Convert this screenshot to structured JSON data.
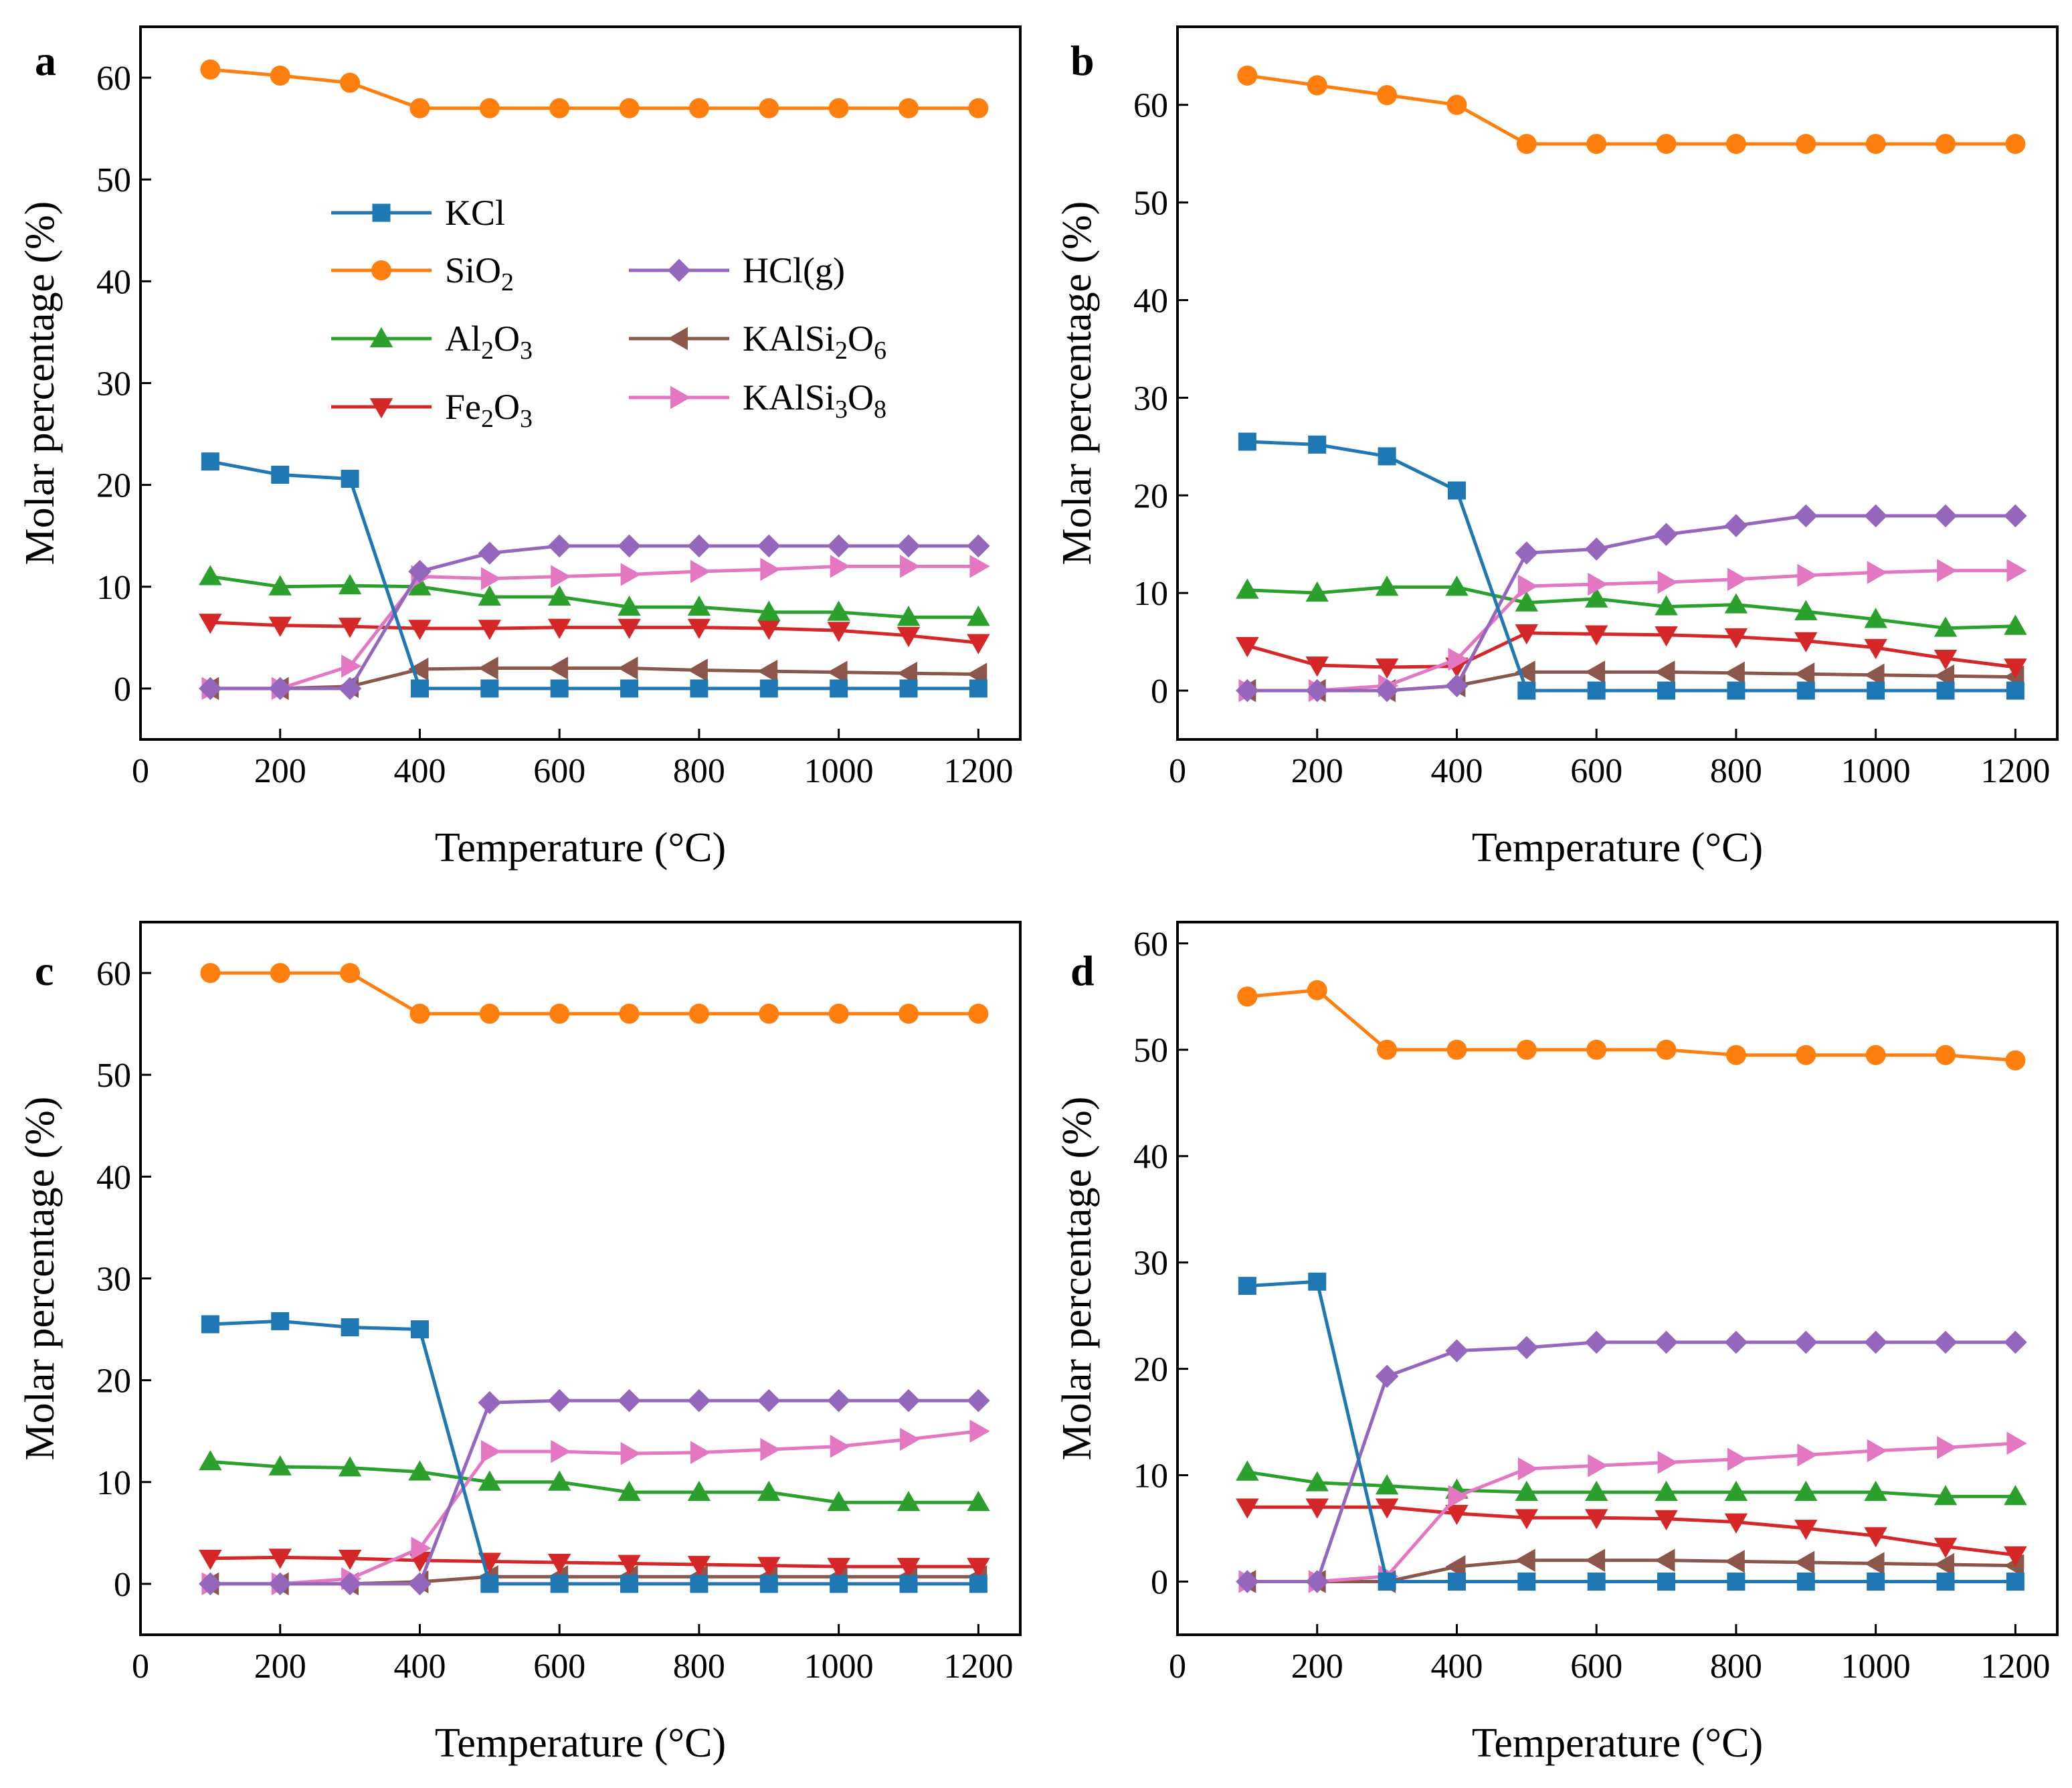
{
  "chart_data": [
    {
      "type": "line",
      "panel": "a",
      "xlabel": "Temperature (°C)",
      "ylabel": "Molar percentage (%)",
      "xlim": [
        0,
        1260
      ],
      "ylim": [
        -5,
        65
      ],
      "xticks": [
        0,
        200,
        400,
        600,
        800,
        1000,
        1200
      ],
      "yticks": [
        0,
        10,
        20,
        30,
        40,
        50,
        60
      ],
      "x": [
        100,
        200,
        300,
        400,
        500,
        600,
        700,
        800,
        900,
        1000,
        1100,
        1200
      ],
      "series": [
        {
          "name": "KCl",
          "values": [
            22.3,
            21.0,
            20.6,
            0,
            0,
            0,
            0,
            0,
            0,
            0,
            0,
            0
          ]
        },
        {
          "name": "SiO2",
          "values": [
            60.8,
            60.2,
            59.5,
            57.0,
            57.0,
            57.0,
            57.0,
            57.0,
            57.0,
            57.0,
            57.0,
            57.0
          ]
        },
        {
          "name": "Al2O3",
          "values": [
            11.0,
            10.0,
            10.1,
            10.0,
            9.0,
            9.0,
            8.0,
            8.0,
            7.5,
            7.5,
            7.0,
            7.0
          ]
        },
        {
          "name": "Fe2O3",
          "values": [
            6.5,
            6.2,
            6.1,
            5.9,
            5.9,
            6.0,
            6.0,
            6.0,
            5.9,
            5.7,
            5.2,
            4.5
          ]
        },
        {
          "name": "HCl(g)",
          "values": [
            0,
            0,
            0,
            11.5,
            13.3,
            14.0,
            14.0,
            14.0,
            14.0,
            14.0,
            14.0,
            14.0
          ]
        },
        {
          "name": "KAlSi2O6",
          "values": [
            0,
            0,
            0.2,
            1.9,
            2.0,
            2.0,
            2.0,
            1.8,
            1.7,
            1.6,
            1.5,
            1.4
          ]
        },
        {
          "name": "KAlSi3O8",
          "values": [
            0,
            0,
            2.2,
            11.0,
            10.8,
            11.0,
            11.2,
            11.5,
            11.7,
            12.0,
            12.0,
            12.0
          ]
        }
      ]
    },
    {
      "type": "line",
      "panel": "b",
      "xlabel": "Temperature (°C)",
      "ylabel": "Molar percentage (%)",
      "xlim": [
        0,
        1260
      ],
      "ylim": [
        -5,
        68
      ],
      "xticks": [
        0,
        200,
        400,
        600,
        800,
        1000,
        1200
      ],
      "yticks": [
        0,
        10,
        20,
        30,
        40,
        50,
        60
      ],
      "x": [
        100,
        200,
        300,
        400,
        500,
        600,
        700,
        800,
        900,
        1000,
        1100,
        1200
      ],
      "series": [
        {
          "name": "KCl",
          "values": [
            25.5,
            25.2,
            24.0,
            20.5,
            0,
            0,
            0,
            0,
            0,
            0,
            0,
            0
          ]
        },
        {
          "name": "SiO2",
          "values": [
            63.0,
            62.0,
            61.0,
            60.0,
            56.0,
            56.0,
            56.0,
            56.0,
            56.0,
            56.0,
            56.0,
            56.0
          ]
        },
        {
          "name": "Al2O3",
          "values": [
            10.3,
            10.0,
            10.6,
            10.6,
            9.0,
            9.4,
            8.6,
            8.8,
            8.1,
            7.3,
            6.4,
            6.6
          ]
        },
        {
          "name": "Fe2O3",
          "values": [
            4.6,
            2.6,
            2.4,
            2.5,
            5.9,
            5.8,
            5.7,
            5.5,
            5.1,
            4.4,
            3.3,
            2.4
          ]
        },
        {
          "name": "HCl(g)",
          "values": [
            0,
            0,
            0,
            0.5,
            14.1,
            14.5,
            16.0,
            16.9,
            17.9,
            17.9,
            17.9,
            17.9
          ]
        },
        {
          "name": "KAlSi2O6",
          "values": [
            0,
            0,
            0,
            0.5,
            1.9,
            1.9,
            1.9,
            1.8,
            1.7,
            1.6,
            1.5,
            1.4
          ]
        },
        {
          "name": "KAlSi3O8",
          "values": [
            0,
            0,
            0.5,
            3.2,
            10.7,
            10.9,
            11.1,
            11.4,
            11.8,
            12.1,
            12.3,
            12.3
          ]
        }
      ]
    },
    {
      "type": "line",
      "panel": "c",
      "xlabel": "Temperature (°C)",
      "ylabel": "Molar percentage (%)",
      "xlim": [
        0,
        1260
      ],
      "ylim": [
        -5,
        65
      ],
      "xticks": [
        0,
        200,
        400,
        600,
        800,
        1000,
        1200
      ],
      "yticks": [
        0,
        10,
        20,
        30,
        40,
        50,
        60
      ],
      "x": [
        100,
        200,
        300,
        400,
        500,
        600,
        700,
        800,
        900,
        1000,
        1100,
        1200
      ],
      "series": [
        {
          "name": "KCl",
          "values": [
            25.5,
            25.8,
            25.2,
            25.0,
            0,
            0,
            0,
            0,
            0,
            0,
            0,
            0
          ]
        },
        {
          "name": "SiO2",
          "values": [
            60.0,
            60.0,
            60.0,
            56.0,
            56.0,
            56.0,
            56.0,
            56.0,
            56.0,
            56.0,
            56.0,
            56.0
          ]
        },
        {
          "name": "Al2O3",
          "values": [
            12.0,
            11.5,
            11.4,
            11.0,
            10.0,
            10.0,
            9.0,
            9.0,
            9.0,
            8.0,
            8.0,
            8.0
          ]
        },
        {
          "name": "Fe2O3",
          "values": [
            2.5,
            2.6,
            2.5,
            2.3,
            2.2,
            2.1,
            2.0,
            1.9,
            1.8,
            1.7,
            1.7,
            1.7
          ]
        },
        {
          "name": "HCl(g)",
          "values": [
            0,
            0,
            0,
            0,
            17.8,
            18.0,
            18.0,
            18.0,
            18.0,
            18.0,
            18.0,
            18.0
          ]
        },
        {
          "name": "KAlSi2O6",
          "values": [
            0,
            0,
            0,
            0.2,
            0.7,
            0.7,
            0.7,
            0.7,
            0.7,
            0.7,
            0.7,
            0.7
          ]
        },
        {
          "name": "KAlSi3O8",
          "values": [
            0,
            0,
            0.5,
            3.5,
            13.0,
            13.0,
            12.8,
            12.9,
            13.2,
            13.5,
            14.2,
            15.0
          ]
        }
      ]
    },
    {
      "type": "line",
      "panel": "d",
      "xlabel": "Temperature (°C)",
      "ylabel": "Molar percentage (%)",
      "xlim": [
        0,
        1260
      ],
      "ylim": [
        -5,
        62
      ],
      "xticks": [
        0,
        200,
        400,
        600,
        800,
        1000,
        1200
      ],
      "yticks": [
        0,
        10,
        20,
        30,
        40,
        50,
        60
      ],
      "x": [
        100,
        200,
        300,
        400,
        500,
        600,
        700,
        800,
        900,
        1000,
        1100,
        1200
      ],
      "series": [
        {
          "name": "KCl",
          "values": [
            27.8,
            28.2,
            0,
            0,
            0,
            0,
            0,
            0,
            0,
            0,
            0,
            0
          ]
        },
        {
          "name": "SiO2",
          "values": [
            55.0,
            55.6,
            50.0,
            50.0,
            50.0,
            50.0,
            50.0,
            49.5,
            49.5,
            49.5,
            49.5,
            49.0
          ]
        },
        {
          "name": "Al2O3",
          "values": [
            10.3,
            9.3,
            9.0,
            8.6,
            8.4,
            8.4,
            8.4,
            8.4,
            8.4,
            8.4,
            8.0,
            8.0
          ]
        },
        {
          "name": "Fe2O3",
          "values": [
            7.0,
            7.0,
            7.0,
            6.4,
            6.0,
            6.0,
            5.9,
            5.6,
            5.0,
            4.3,
            3.3,
            2.5
          ]
        },
        {
          "name": "HCl(g)",
          "values": [
            0,
            0,
            19.3,
            21.7,
            22.0,
            22.5,
            22.5,
            22.5,
            22.5,
            22.5,
            22.5,
            22.5
          ]
        },
        {
          "name": "KAlSi2O6",
          "values": [
            0,
            0,
            0,
            1.4,
            2.0,
            2.0,
            2.0,
            1.9,
            1.8,
            1.7,
            1.6,
            1.5
          ]
        },
        {
          "name": "KAlSi3O8",
          "values": [
            0,
            0,
            0.5,
            8.0,
            10.6,
            10.9,
            11.2,
            11.5,
            11.9,
            12.3,
            12.6,
            13.0
          ]
        }
      ]
    }
  ],
  "series_styles": [
    {
      "name": "KCl",
      "color": "#1f77b4",
      "marker": "square"
    },
    {
      "name": "SiO2",
      "color": "#ff7f0e",
      "marker": "circle"
    },
    {
      "name": "Al2O3",
      "color": "#2ca02c",
      "marker": "triangle-up"
    },
    {
      "name": "Fe2O3",
      "color": "#d62728",
      "marker": "triangle-down"
    },
    {
      "name": "HCl(g)",
      "color": "#9467bd",
      "marker": "diamond"
    },
    {
      "name": "KAlSi2O6",
      "color": "#8c564b",
      "marker": "triangle-left"
    },
    {
      "name": "KAlSi3O8",
      "color": "#e377c2",
      "marker": "triangle-right"
    }
  ],
  "legend": {
    "items": [
      {
        "key": "KCl",
        "parts": [
          {
            "t": "KCl"
          }
        ]
      },
      {
        "key": "SiO2",
        "parts": [
          {
            "t": "SiO"
          },
          {
            "t": "2",
            "sub": true
          }
        ]
      },
      {
        "key": "Al2O3",
        "parts": [
          {
            "t": "Al"
          },
          {
            "t": "2",
            "sub": true
          },
          {
            "t": "O"
          },
          {
            "t": "3",
            "sub": true
          }
        ]
      },
      {
        "key": "Fe2O3",
        "parts": [
          {
            "t": "Fe"
          },
          {
            "t": "2",
            "sub": true
          },
          {
            "t": "O"
          },
          {
            "t": "3",
            "sub": true
          }
        ]
      },
      {
        "key": "HCl(g)",
        "parts": [
          {
            "t": "HCl(g)"
          }
        ]
      },
      {
        "key": "KAlSi2O6",
        "parts": [
          {
            "t": "KAlSi"
          },
          {
            "t": "2",
            "sub": true
          },
          {
            "t": "O"
          },
          {
            "t": "6",
            "sub": true
          }
        ]
      },
      {
        "key": "KAlSi3O8",
        "parts": [
          {
            "t": "KAlSi"
          },
          {
            "t": "3",
            "sub": true
          },
          {
            "t": "O"
          },
          {
            "t": "8",
            "sub": true
          }
        ]
      }
    ]
  }
}
